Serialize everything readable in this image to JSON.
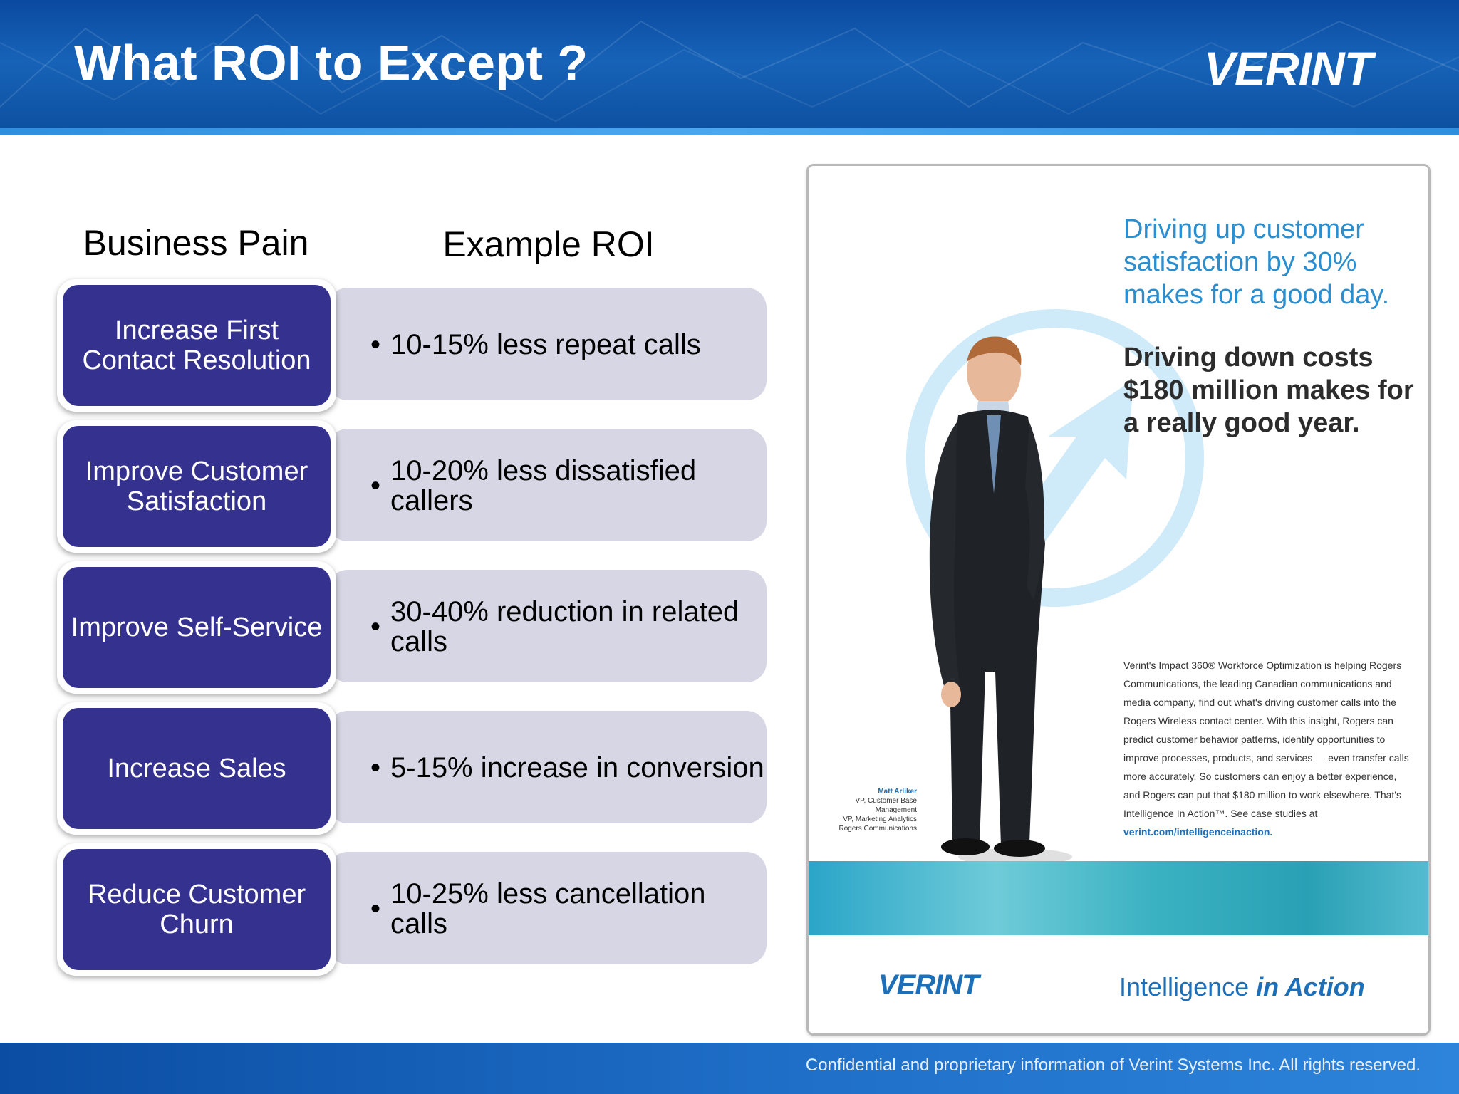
{
  "header": {
    "title": "What ROI to Except ?",
    "logo_text": "VERINT"
  },
  "columns": {
    "pain_heading": "Business Pain",
    "roi_heading": "Example ROI"
  },
  "rows": [
    {
      "pain": "Increase First Contact Resolution",
      "roi": "10-15% less repeat calls"
    },
    {
      "pain": "Improve Customer Satisfaction",
      "roi": "10-20% less dissatisfied callers"
    },
    {
      "pain": "Improve Self-Service",
      "roi": "30-40% reduction in related calls"
    },
    {
      "pain": "Increase Sales",
      "roi": "5-15% increase in conversion"
    },
    {
      "pain": "Reduce Customer Churn",
      "roi": "10-25% less cancellation calls"
    }
  ],
  "bullet": "•",
  "ad": {
    "headline_1": "Driving up customer satisfaction by 30% makes for a good day.",
    "headline_2": "Driving down costs $180 million makes for a really good year.",
    "body": "Verint's Impact 360® Workforce Optimization is helping Rogers Communications, the leading Canadian communications and media company, find out what's driving customer calls into the Rogers Wireless contact center. With this insight, Rogers can predict customer behavior patterns, identify opportunities to improve processes, products, and services — even transfer calls more accurately. So customers can enjoy a better experience, and Rogers can put that $180 million to work elsewhere. That's Intelligence In Action™. See case studies at",
    "body_link": "verint.com/intelligenceinaction.",
    "caption_name": "Matt Arliker",
    "caption_title_1": "VP, Customer Base Management",
    "caption_title_2": "VP, Marketing Analytics Rogers Communications",
    "logo_text": "VERINT",
    "tagline_plain": "Intelligence ",
    "tagline_bold": "in Action"
  },
  "footer": {
    "text": "Confidential and proprietary information of Verint Systems Inc. All rights reserved."
  },
  "colors": {
    "header_blue": "#1763b8",
    "pain_box": "#35318f",
    "roi_box": "#d6d6e4",
    "ad_accent": "#2b8fcf"
  }
}
